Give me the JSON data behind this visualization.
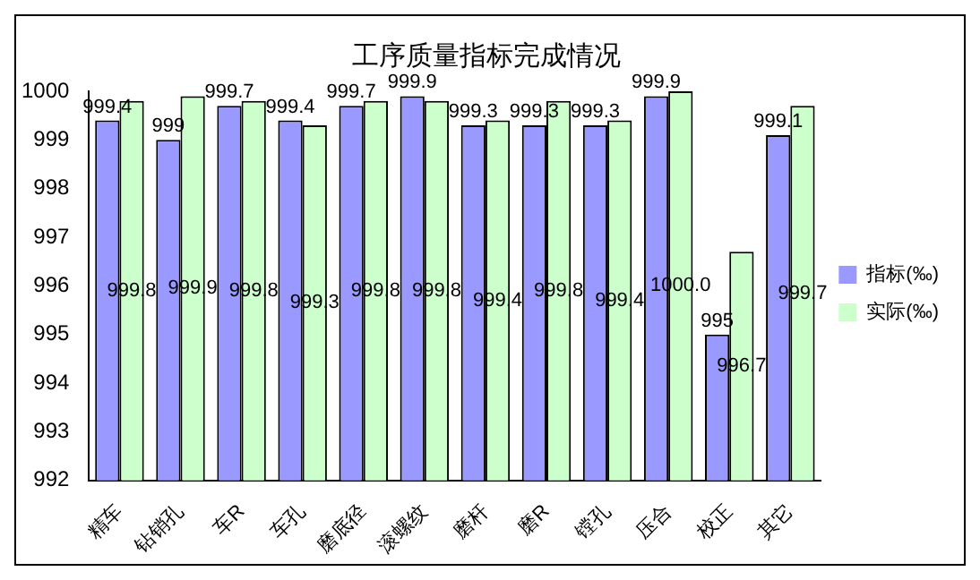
{
  "chart_data": {
    "type": "bar",
    "title": "工序质量指标完成情况",
    "categories": [
      "精车",
      "钻销孔",
      "车R",
      "车孔",
      "磨底径",
      "滚螺纹",
      "磨杆",
      "磨R",
      "镗孔",
      "压合",
      "校正",
      "其它"
    ],
    "series": [
      {
        "name": "指标(‰)",
        "color": "#9999ff",
        "values": [
          999.4,
          999,
          999.7,
          999.4,
          999.7,
          999.9,
          999.3,
          999.3,
          999.3,
          999.9,
          995,
          999.1
        ],
        "value_labels": [
          "999.4",
          "999",
          "999.7",
          "999.4",
          "999.7",
          "999.9",
          "999.3",
          "999.3",
          "999.3",
          "999.9",
          "995",
          "999.1"
        ]
      },
      {
        "name": "实际(‰)",
        "color": "#ccffcc",
        "values": [
          999.8,
          999.9,
          999.8,
          999.3,
          999.8,
          999.8,
          999.4,
          999.8,
          999.4,
          1000.0,
          996.7,
          999.7
        ],
        "value_labels": [
          "999.8",
          "999.9",
          "999.8",
          "999.3",
          "999.8",
          "999.8",
          "999.4",
          "999.8",
          "999.4",
          "1000.0",
          "996.7",
          "999.7"
        ]
      }
    ],
    "ylim": [
      992,
      1000
    ],
    "yticks": [
      992,
      993,
      994,
      995,
      996,
      997,
      998,
      999,
      1000
    ],
    "grid": false,
    "legend": "right"
  }
}
